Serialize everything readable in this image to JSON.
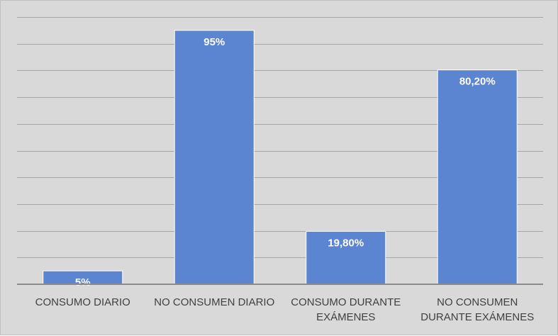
{
  "chart_data": {
    "type": "bar",
    "categories": [
      [
        "CONSUMO DIARIO"
      ],
      [
        "NO CONSUMEN DIARIO"
      ],
      [
        "CONSUMO DURANTE",
        "EXÁMENES"
      ],
      [
        "NO CONSUMEN",
        "DURANTE EXÁMENES"
      ]
    ],
    "values": [
      5,
      95,
      19.8,
      80.2
    ],
    "data_labels": [
      "5%",
      "95%",
      "19,80%",
      "80,20%"
    ],
    "ylim": [
      0,
      100
    ],
    "grid": true,
    "colors": {
      "bar": "#5b84d1",
      "background": "#d9d9d9",
      "gridline": "#a6a6a6",
      "label": "#404040"
    }
  }
}
